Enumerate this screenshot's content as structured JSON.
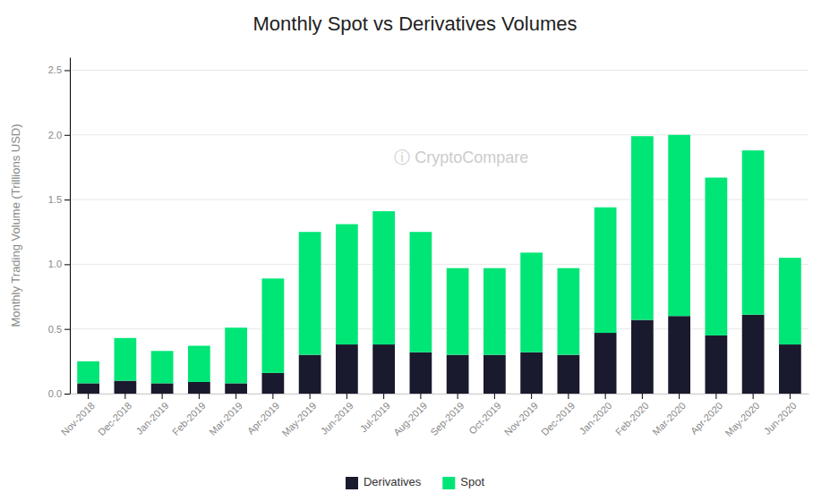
{
  "chart_data": {
    "type": "bar",
    "title": "Monthly Spot vs Derivatives Volumes",
    "y_label": "Monthly Trading Volume (Trillions USD)",
    "annotations": [
      "ⓘ CryptoCompare"
    ],
    "categories": [
      "Nov-2018",
      "Dec-2018",
      "Jan-2019",
      "Feb-2019",
      "Mar-2019",
      "Apr-2019",
      "May-2019",
      "Jun-2019",
      "Jul-2019",
      "Aug-2019",
      "Sep-2019",
      "Oct-2019",
      "Nov-2019",
      "Dec-2019",
      "Jan-2020",
      "Feb-2020",
      "Mar-2020",
      "Apr-2020",
      "May-2020",
      "Jun-2020"
    ],
    "series": [
      {
        "name": "Derivatives",
        "color": "#1a1a2e",
        "values": [
          0.08,
          0.1,
          0.08,
          0.09,
          0.08,
          0.16,
          0.3,
          0.38,
          0.38,
          0.32,
          0.3,
          0.3,
          0.32,
          0.3,
          0.47,
          0.57,
          0.6,
          0.45,
          0.61,
          0.38
        ]
      },
      {
        "name": "Spot",
        "color": "#00e676",
        "values": [
          0.17,
          0.33,
          0.25,
          0.28,
          0.43,
          0.73,
          0.95,
          0.93,
          1.03,
          0.93,
          0.67,
          0.67,
          0.77,
          0.67,
          0.97,
          1.42,
          1.4,
          1.22,
          1.27,
          0.67
        ]
      }
    ],
    "stacked": true,
    "ylim": [
      0,
      2.6
    ],
    "yticks": [
      {
        "value": 0.0,
        "label": "0.0"
      },
      0.5,
      {
        "value": 1.0,
        "label": "1.0"
      },
      1.5,
      {
        "value": 2.0,
        "label": "2.0"
      },
      2.5
    ],
    "grid": true,
    "legend": "bottom"
  }
}
